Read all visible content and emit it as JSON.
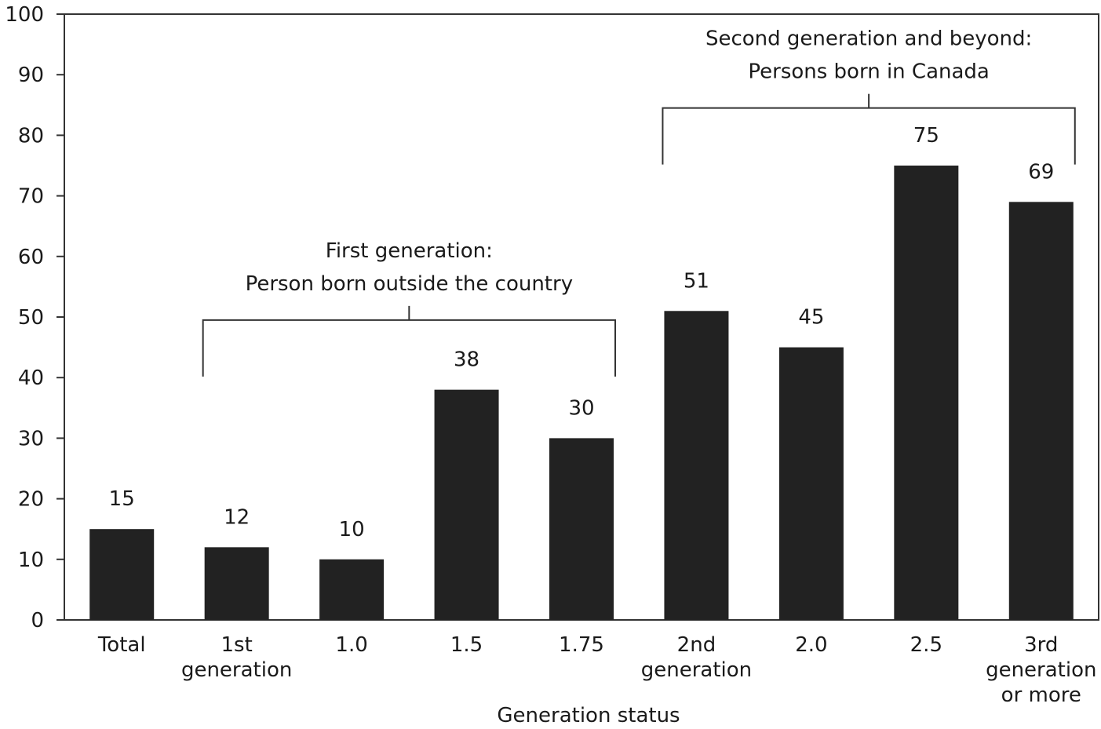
{
  "chart_data": {
    "type": "bar",
    "title": "",
    "xlabel": "Generation status",
    "ylabel": "",
    "ylim": [
      0,
      100
    ],
    "yticks": [
      0,
      10,
      20,
      30,
      40,
      50,
      60,
      70,
      80,
      90,
      100
    ],
    "grid": false,
    "categories": [
      [
        "Total"
      ],
      [
        "1st",
        "generation"
      ],
      [
        "1.0"
      ],
      [
        "1.5"
      ],
      [
        "1.75"
      ],
      [
        "2nd",
        "generation"
      ],
      [
        "2.0"
      ],
      [
        "2.5"
      ],
      [
        "3rd",
        "generation",
        "or more"
      ]
    ],
    "values": [
      15,
      12,
      10,
      38,
      30,
      51,
      45,
      75,
      69
    ],
    "data_labels": [
      "15",
      "12",
      "10",
      "38",
      "30",
      "51",
      "45",
      "75",
      "69"
    ],
    "bar_color": "#222222",
    "groups": [
      {
        "label_lines": [
          "First generation:",
          "Person born outside the country"
        ],
        "from_index": 1,
        "to_index": 4,
        "bracket_level": 49.5
      },
      {
        "label_lines": [
          "Second generation and beyond:",
          "Persons born in Canada"
        ],
        "from_index": 5,
        "to_index": 8,
        "bracket_level": 84.5
      }
    ]
  }
}
